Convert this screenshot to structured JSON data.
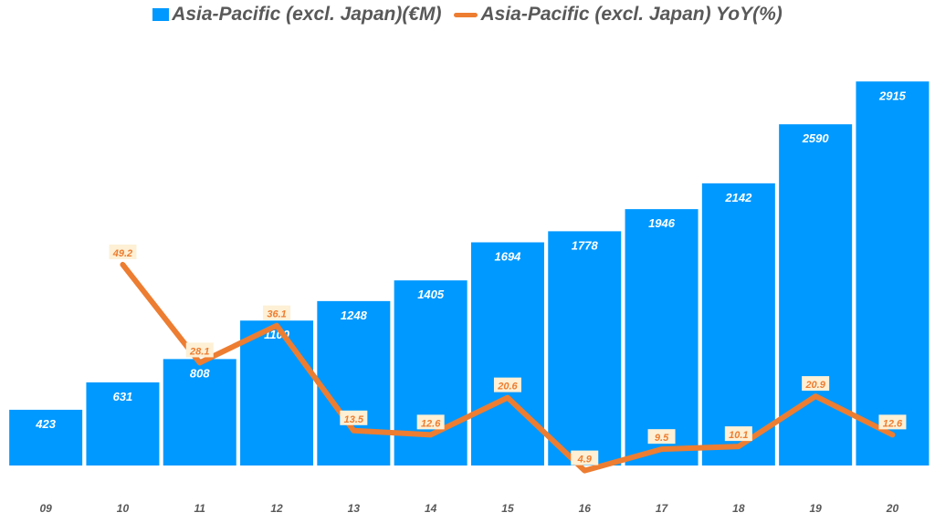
{
  "chart_data": {
    "type": "bar+line",
    "categories": [
      "09",
      "10",
      "11",
      "12",
      "13",
      "14",
      "15",
      "16",
      "17",
      "18",
      "19",
      "20"
    ],
    "series": [
      {
        "name": "Asia-Pacific (excl. Japan)(€M)",
        "type": "bar",
        "color": "#0099ff",
        "values": [
          423,
          631,
          808,
          1100,
          1248,
          1405,
          1694,
          1778,
          1946,
          2142,
          2590,
          2915
        ]
      },
      {
        "name": "Asia-Pacific (excl. Japan) YoY(%)",
        "type": "line",
        "color": "#ed7d31",
        "values": [
          null,
          49.2,
          28.1,
          36.1,
          13.5,
          12.6,
          20.6,
          4.9,
          9.5,
          10.1,
          20.9,
          12.6
        ]
      }
    ],
    "ylim": [
      0,
      3000
    ],
    "y2lim": [
      6,
      91
    ],
    "grid": false,
    "legend": "top"
  }
}
